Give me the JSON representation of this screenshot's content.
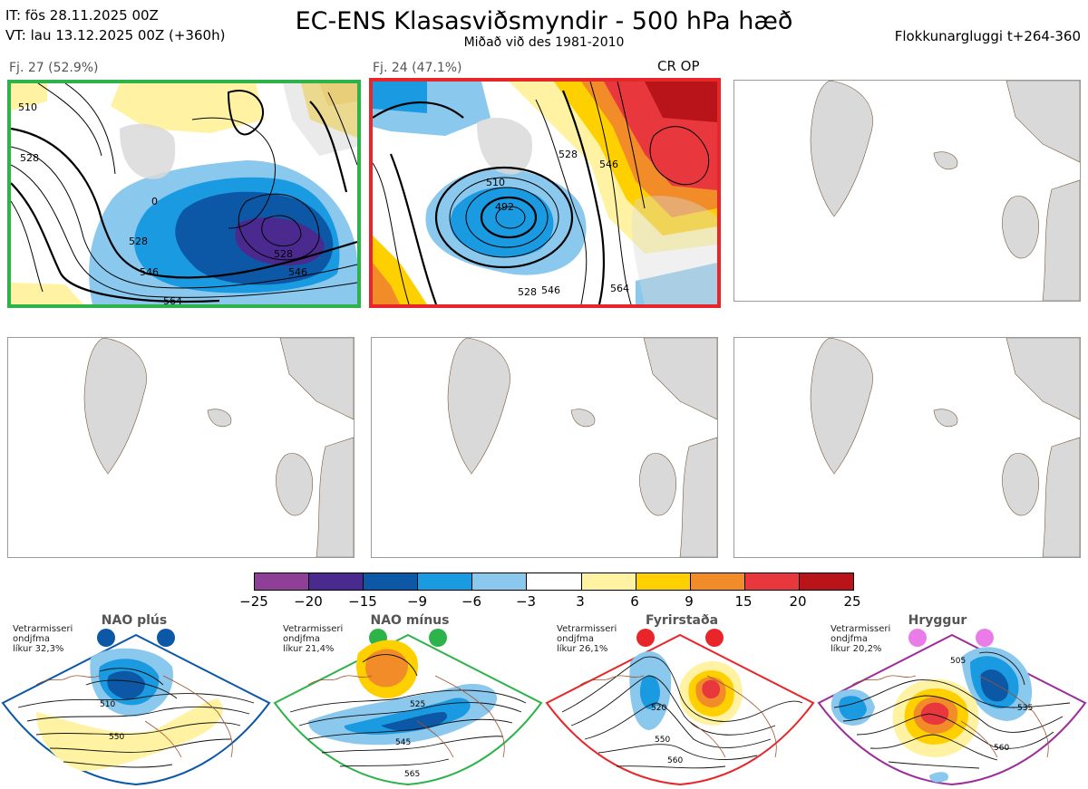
{
  "header": {
    "it_line": "IT: fös 28.11.2025 00Z",
    "vt_line": "VT: lau 13.12.2025 00Z  (+360h)",
    "title": "EC-ENS Klasasviðsmyndir - 500 hPa hæð",
    "subtitle": "Miðað við des 1981-2010",
    "cluster_window": "Flokkunargluggi t+264-360"
  },
  "panels": [
    {
      "label": "Fj. 27 (52.9%)",
      "frame_color": "#2db34a",
      "extra": "",
      "contours": [
        "528",
        "546",
        "564",
        "528",
        "546",
        "510",
        "528",
        "0"
      ]
    },
    {
      "label": "Fj. 24 (47.1%)",
      "frame_color": "#e8262a",
      "extra": "CR OP",
      "contours": [
        "510",
        "492",
        "528",
        "546",
        "564",
        "546",
        "528"
      ]
    }
  ],
  "colorbar": {
    "colors": [
      "#8f3f97",
      "#4b2a8f",
      "#0c58a6",
      "#1a9ae0",
      "#8ac8ed",
      "#ffffff",
      "#fff3a3",
      "#ffd000",
      "#f28c28",
      "#e8383d",
      "#b8141a"
    ],
    "ticks": [
      "−25",
      "−20",
      "−15",
      "−9",
      "−6",
      "−3",
      "3",
      "6",
      "9",
      "15",
      "20",
      "25"
    ]
  },
  "regimes": [
    {
      "name": "NAO plús",
      "note": [
        "Vetrarmisseri",
        "ondjfma",
        "líkur 32,3%"
      ],
      "color": "#0c58a6",
      "labels": [
        "510",
        "550"
      ]
    },
    {
      "name": "NAO mínus",
      "note": [
        "Vetrarmisseri",
        "ondjfma",
        "líkur 21,4%"
      ],
      "color": "#2db34a",
      "labels": [
        "525",
        "545",
        "565"
      ]
    },
    {
      "name": "Fyrirstaða",
      "note": [
        "Vetrarmisseri",
        "ondjfma",
        "líkur 26,1%"
      ],
      "color": "#e8262a",
      "labels": [
        "520",
        "550",
        "560"
      ]
    },
    {
      "name": "Hryggur",
      "note": [
        "Vetrarmisseri",
        "ondjfma",
        "líkur 20,2%"
      ],
      "color": "#9b2e9b",
      "labels": [
        "505",
        "535",
        "560"
      ]
    }
  ]
}
